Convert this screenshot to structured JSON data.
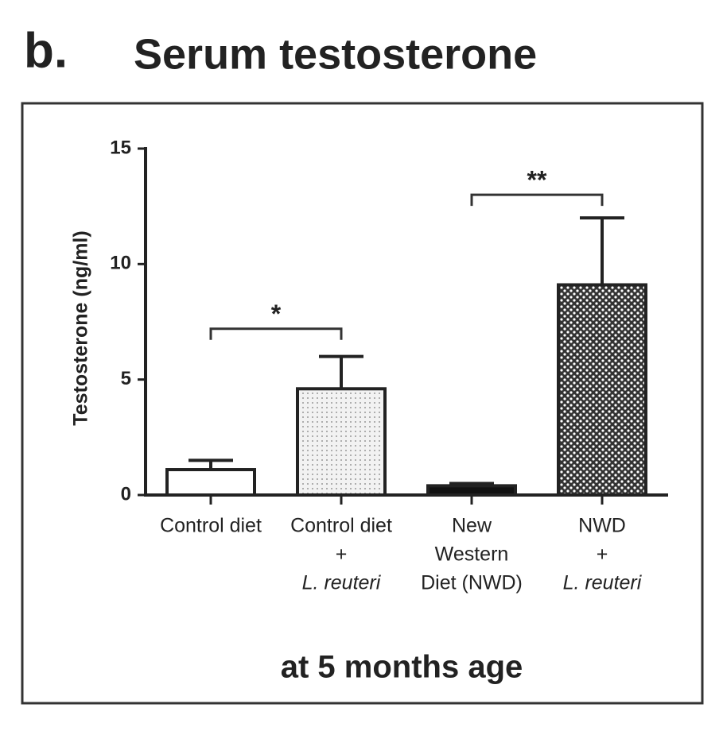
{
  "chart_data": {
    "type": "bar",
    "panel_label": "b.",
    "title": "Serum testosterone",
    "ylabel": "Testosterone (ng/ml)",
    "xlabel": "at 5 months age",
    "categories": [
      [
        {
          "text": "Control diet"
        }
      ],
      [
        {
          "text": "Control diet"
        },
        {
          "text": "+"
        },
        {
          "text": "L. reuteri",
          "italic": true
        }
      ],
      [
        {
          "text": "New"
        },
        {
          "text": "Western"
        },
        {
          "text": "Diet (NWD)"
        }
      ],
      [
        {
          "text": "NWD"
        },
        {
          "text": "+"
        },
        {
          "text": "L. reuteri",
          "italic": true
        }
      ]
    ],
    "values": [
      1.1,
      4.6,
      0.4,
      9.1
    ],
    "errors": [
      0.4,
      1.4,
      0.1,
      2.9
    ],
    "fills": [
      "white",
      "dots",
      "black",
      "checker"
    ],
    "ylim": [
      0,
      15
    ],
    "yticks": [
      0,
      5,
      10,
      15
    ],
    "annotations": [
      {
        "text": "*",
        "from": 0,
        "to": 1,
        "y": 7.2
      },
      {
        "text": "**",
        "from": 2,
        "to": 3,
        "y": 13
      }
    ]
  }
}
